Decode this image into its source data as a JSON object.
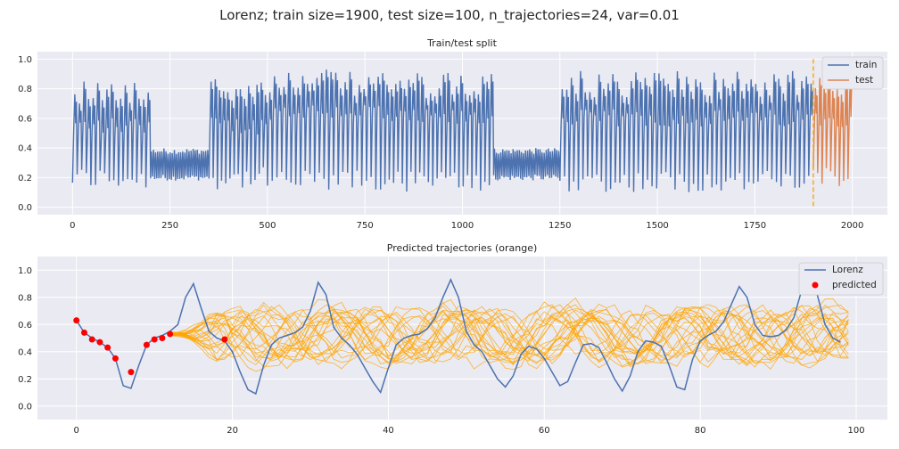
{
  "figure": {
    "suptitle": "Lorenz; train size=1900, test size=100, n_trajectories=24, var=0.01"
  },
  "colors": {
    "background": "#eaeaf2",
    "train": "#4c72b0",
    "test": "#dd8452",
    "lorenz": "#4c72b0",
    "trajectory": "#ffa500",
    "predicted": "#ff0000",
    "split_line": "#ffa500"
  },
  "chart_data": [
    {
      "type": "line",
      "title": "Train/test split",
      "xlabel": "",
      "ylabel": "",
      "xlim": [
        -90,
        2090
      ],
      "ylim": [
        -0.05,
        1.05
      ],
      "xticks": [
        0,
        250,
        500,
        750,
        1000,
        1250,
        1500,
        1750,
        2000
      ],
      "yticks": [
        0.0,
        0.2,
        0.4,
        0.6,
        0.8,
        1.0
      ],
      "grid": true,
      "legend_position": "top-right",
      "split_x": 1900,
      "series": [
        {
          "name": "train",
          "segments": [
            {
              "x_start": 0,
              "x_end": 200,
              "n_cycles": 17,
              "peak": 0.88,
              "trough": 0.12,
              "mid": 0.5,
              "pattern": "burst"
            },
            {
              "x_start": 200,
              "x_end": 350,
              "n_cycles": 28,
              "peak": 0.38,
              "trough": 0.2,
              "mid": 0.3,
              "pattern": "band"
            },
            {
              "x_start": 350,
              "x_end": 500,
              "n_cycles": 14,
              "peak": 0.9,
              "trough": 0.12,
              "mid": 0.5,
              "pattern": "burst"
            },
            {
              "x_start": 500,
              "x_end": 790,
              "n_cycles": 24,
              "peak": 0.93,
              "trough": 0.1,
              "mid": 0.6,
              "pattern": "burst"
            },
            {
              "x_start": 790,
              "x_end": 1080,
              "n_cycles": 26,
              "peak": 0.91,
              "trough": 0.1,
              "mid": 0.55,
              "pattern": "burst"
            },
            {
              "x_start": 1080,
              "x_end": 1250,
              "n_cycles": 32,
              "peak": 0.38,
              "trough": 0.2,
              "mid": 0.3,
              "pattern": "band"
            },
            {
              "x_start": 1250,
              "x_end": 1900,
              "n_cycles": 55,
              "peak": 0.92,
              "trough": 0.1,
              "mid": 0.55,
              "pattern": "burst"
            }
          ]
        },
        {
          "name": "test",
          "segments": [
            {
              "x_start": 1900,
              "x_end": 2000,
              "n_cycles": 9,
              "peak": 0.93,
              "trough": 0.12,
              "mid": 0.55,
              "pattern": "burst"
            }
          ]
        }
      ]
    },
    {
      "type": "line",
      "title": "Predicted trajectories (orange)",
      "xlabel": "",
      "ylabel": "",
      "xlim": [
        -5,
        104
      ],
      "ylim": [
        -0.1,
        1.1
      ],
      "xticks": [
        0,
        20,
        40,
        60,
        80,
        100
      ],
      "yticks": [
        0.0,
        0.2,
        0.4,
        0.6,
        0.8,
        1.0
      ],
      "grid": true,
      "legend_position": "top-right",
      "series": [
        {
          "name": "Lorenz",
          "x_start": 0,
          "y": [
            0.63,
            0.54,
            0.5,
            0.47,
            0.43,
            0.35,
            0.15,
            0.13,
            0.3,
            0.45,
            0.5,
            0.52,
            0.55,
            0.6,
            0.8,
            0.9,
            0.72,
            0.55,
            0.5,
            0.48,
            0.4,
            0.25,
            0.12,
            0.09,
            0.3,
            0.45,
            0.5,
            0.52,
            0.54,
            0.58,
            0.7,
            0.91,
            0.82,
            0.58,
            0.5,
            0.45,
            0.38,
            0.28,
            0.18,
            0.1,
            0.28,
            0.45,
            0.5,
            0.52,
            0.53,
            0.57,
            0.65,
            0.8,
            0.93,
            0.8,
            0.55,
            0.45,
            0.4,
            0.3,
            0.2,
            0.14,
            0.22,
            0.38,
            0.44,
            0.42,
            0.35,
            0.25,
            0.15,
            0.18,
            0.32,
            0.45,
            0.46,
            0.43,
            0.32,
            0.2,
            0.11,
            0.22,
            0.4,
            0.48,
            0.47,
            0.44,
            0.3,
            0.14,
            0.12,
            0.34,
            0.48,
            0.52,
            0.55,
            0.62,
            0.75,
            0.88,
            0.8,
            0.6,
            0.52,
            0.51,
            0.52,
            0.56,
            0.65,
            0.85,
            0.91,
            0.82,
            0.6,
            0.5,
            0.47
          ]
        },
        {
          "name": "predicted",
          "points": [
            [
              0,
              0.63
            ],
            [
              1,
              0.54
            ],
            [
              2,
              0.49
            ],
            [
              3,
              0.47
            ],
            [
              4,
              0.43
            ],
            [
              5,
              0.35
            ],
            [
              7,
              0.25
            ],
            [
              9,
              0.45
            ],
            [
              10,
              0.49
            ],
            [
              11,
              0.5
            ],
            [
              12,
              0.53
            ],
            [
              19,
              0.49
            ]
          ]
        }
      ],
      "trajectories": {
        "count": 24,
        "x_start": 12,
        "x_end": 99,
        "start_y": 0.53,
        "mean_y": 0.52,
        "range_y": [
          0.18,
          0.84
        ]
      }
    }
  ]
}
